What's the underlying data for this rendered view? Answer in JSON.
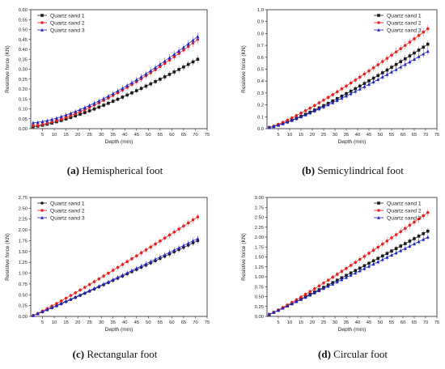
{
  "chart_data": [
    {
      "type": "line",
      "caption_label": "(a)",
      "caption_text": " Hemispherical foot",
      "xlabel": "Depth (mm)",
      "ylabel": "Resistive force (KN)",
      "xlim": [
        0,
        75
      ],
      "ylim": [
        0,
        0.6
      ],
      "xticks": [
        "5",
        "10",
        "15",
        "20",
        "25",
        "30",
        "35",
        "40",
        "45",
        "50",
        "55",
        "60",
        "65",
        "70",
        "75"
      ],
      "yticks": [
        "0.00",
        "0.05",
        "0.10",
        "0.15",
        "0.20",
        "0.25",
        "0.30",
        "0.35",
        "0.40",
        "0.45",
        "0.50",
        "0.55",
        "0.60"
      ],
      "legend_position": "top-left",
      "series": [
        {
          "name": "Quartz sand 1",
          "color": "#1a1a1a",
          "marker": "square",
          "x_start": 1,
          "x_end": 71,
          "x_step": 2,
          "y_start": 0.01,
          "y_end": 0.35,
          "curve": 1.35,
          "err": 0.018
        },
        {
          "name": "Quartz sand 2",
          "color": "#e8211f",
          "marker": "circle",
          "x_start": 1,
          "x_end": 71,
          "x_step": 2,
          "y_start": 0.015,
          "y_end": 0.45,
          "curve": 1.45,
          "err": 0.02
        },
        {
          "name": "Quartz sand 3",
          "color": "#1f23c9",
          "marker": "triangle",
          "x_start": 1,
          "x_end": 71,
          "x_step": 2,
          "y_start": 0.03,
          "y_end": 0.465,
          "curve": 1.5,
          "err": 0.02
        }
      ]
    },
    {
      "type": "line",
      "caption_label": "(b)",
      "caption_text": " Semicylindrical foot",
      "xlabel": "Depth (mm)",
      "ylabel": "Resistive force (KN)",
      "xlim": [
        0,
        75
      ],
      "ylim": [
        0,
        1.0
      ],
      "xticks": [
        "5",
        "10",
        "15",
        "20",
        "25",
        "30",
        "35",
        "40",
        "45",
        "50",
        "55",
        "60",
        "65",
        "70",
        "75"
      ],
      "yticks": [
        "0.0",
        "0.1",
        "0.2",
        "0.3",
        "0.4",
        "0.5",
        "0.6",
        "0.7",
        "0.8",
        "0.9",
        "1.0"
      ],
      "legend_position": "top-right",
      "series": [
        {
          "name": "Quartz sand 1",
          "color": "#1a1a1a",
          "marker": "square",
          "x_start": 1,
          "x_end": 71,
          "x_step": 2,
          "y_start": 0.01,
          "y_end": 0.71,
          "curve": 1.25,
          "err": 0.03
        },
        {
          "name": "Quartz sand 2",
          "color": "#e8211f",
          "marker": "circle",
          "x_start": 1,
          "x_end": 71,
          "x_step": 2,
          "y_start": 0.01,
          "y_end": 0.84,
          "curve": 1.2,
          "err": 0.035
        },
        {
          "name": "Quartz sand 3",
          "color": "#1f23c9",
          "marker": "triangle",
          "x_start": 1,
          "x_end": 71,
          "x_step": 2,
          "y_start": 0.01,
          "y_end": 0.65,
          "curve": 1.22,
          "err": 0.03
        }
      ]
    },
    {
      "type": "line",
      "caption_label": "(c)",
      "caption_text": " Rectangular foot",
      "xlabel": "Depth (mm)",
      "ylabel": "Resistive force (KN)",
      "xlim": [
        0,
        75
      ],
      "ylim": [
        0,
        2.75
      ],
      "xticks": [
        "5",
        "10",
        "15",
        "20",
        "25",
        "30",
        "35",
        "40",
        "45",
        "50",
        "55",
        "60",
        "65",
        "70",
        "75"
      ],
      "yticks": [
        "0.00",
        "0.25",
        "0.50",
        "0.75",
        "1.00",
        "1.25",
        "1.50",
        "1.75",
        "2.00",
        "2.25",
        "2.50",
        "2.75"
      ],
      "legend_position": "top-left",
      "series": [
        {
          "name": "Quartz sand 1",
          "color": "#1a1a1a",
          "marker": "circle",
          "x_start": 1,
          "x_end": 71,
          "x_step": 2,
          "y_start": 0.02,
          "y_end": 1.75,
          "curve": 1.05,
          "err": 0.07
        },
        {
          "name": "Quartz sand 2",
          "color": "#e8211f",
          "marker": "circle",
          "x_start": 1,
          "x_end": 71,
          "x_step": 2,
          "y_start": 0.02,
          "y_end": 2.3,
          "curve": 1.08,
          "err": 0.08
        },
        {
          "name": "Quartz sand 3",
          "color": "#1f23c9",
          "marker": "triangle",
          "x_start": 1,
          "x_end": 71,
          "x_step": 2,
          "y_start": 0.02,
          "y_end": 1.8,
          "curve": 1.05,
          "err": 0.07
        }
      ]
    },
    {
      "type": "line",
      "caption_label": "(d)",
      "caption_text": " Circular foot",
      "xlabel": "Depth (mm)",
      "ylabel": "Resistive force (KN)",
      "xlim": [
        0,
        75
      ],
      "ylim": [
        0,
        3.0
      ],
      "xticks": [
        "5",
        "10",
        "15",
        "20",
        "25",
        "30",
        "35",
        "40",
        "45",
        "50",
        "55",
        "60",
        "65",
        "70",
        "75"
      ],
      "yticks": [
        "0.00",
        "0.25",
        "0.50",
        "0.75",
        "1.00",
        "1.25",
        "1.50",
        "1.75",
        "2.00",
        "2.25",
        "2.50",
        "2.75",
        "3.00"
      ],
      "legend_position": "top-right",
      "series": [
        {
          "name": "Quartz sand 1",
          "color": "#1a1a1a",
          "marker": "square",
          "x_start": 1,
          "x_end": 71,
          "x_step": 2,
          "y_start": 0.05,
          "y_end": 2.15,
          "curve": 1.05,
          "err": 0.07
        },
        {
          "name": "Quartz sand 2",
          "color": "#e8211f",
          "marker": "circle",
          "x_start": 1,
          "x_end": 71,
          "x_step": 2,
          "y_start": 0.05,
          "y_end": 2.62,
          "curve": 1.1,
          "err": 0.1
        },
        {
          "name": "Quartz sand 3",
          "color": "#1f23c9",
          "marker": "triangle",
          "x_start": 1,
          "x_end": 71,
          "x_step": 2,
          "y_start": 0.05,
          "y_end": 2.0,
          "curve": 1.02,
          "err": 0.07
        }
      ]
    }
  ]
}
